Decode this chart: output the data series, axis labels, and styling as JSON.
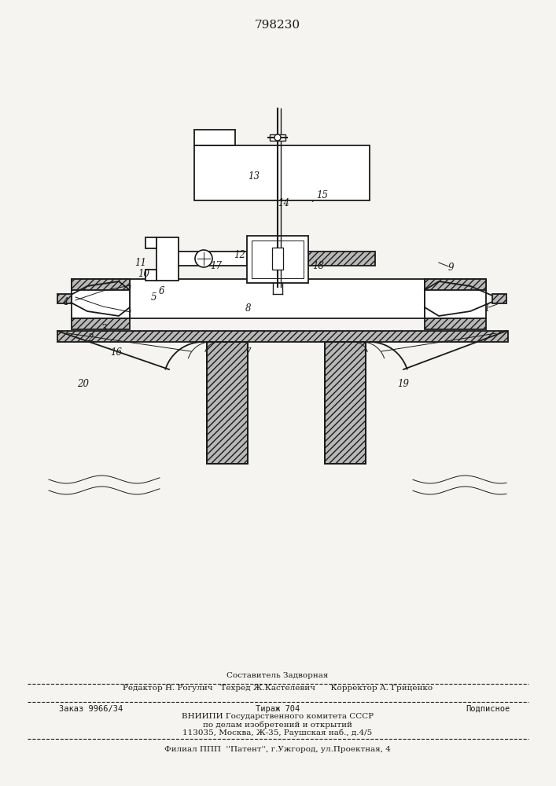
{
  "title": "798230",
  "bg_color": "#f5f4f0",
  "line_color": "#1a1a1a",
  "footer": {
    "line1_center": "Составитель Задворная",
    "line2": "Редактор Н. Рогулич   Техред Ж.Кастелевич      Корректор А. Гриценко",
    "line3_left": "Заказ 9966/34",
    "line3_mid": "Тираж 704",
    "line3_right": "Подписное",
    "line4": "ВНИИПИ Государственного комитета СССР",
    "line5": "по делам изобретений и открытий",
    "line6": "113035, Москва, Ж-35, Раушская наб., д.4/5",
    "line7": "Филиал ППП  ''Патент'', г.Ужгород, ул.Проектная, 4"
  },
  "labels": [
    [
      "1",
      619,
      392
    ],
    [
      "2",
      115,
      430
    ],
    [
      "3",
      133,
      418
    ],
    [
      "4",
      83,
      384
    ],
    [
      "5",
      195,
      378
    ],
    [
      "6",
      205,
      370
    ],
    [
      "7",
      315,
      449
    ],
    [
      "8",
      316,
      393
    ],
    [
      "9",
      573,
      340
    ],
    [
      "10",
      183,
      349
    ],
    [
      "11",
      179,
      334
    ],
    [
      "12",
      305,
      325
    ],
    [
      "13",
      323,
      225
    ],
    [
      "14",
      361,
      258
    ],
    [
      "15",
      410,
      248
    ],
    [
      "16",
      148,
      448
    ],
    [
      "17",
      275,
      338
    ],
    [
      "18",
      405,
      338
    ],
    [
      "19",
      513,
      488
    ],
    [
      "20",
      106,
      488
    ]
  ]
}
